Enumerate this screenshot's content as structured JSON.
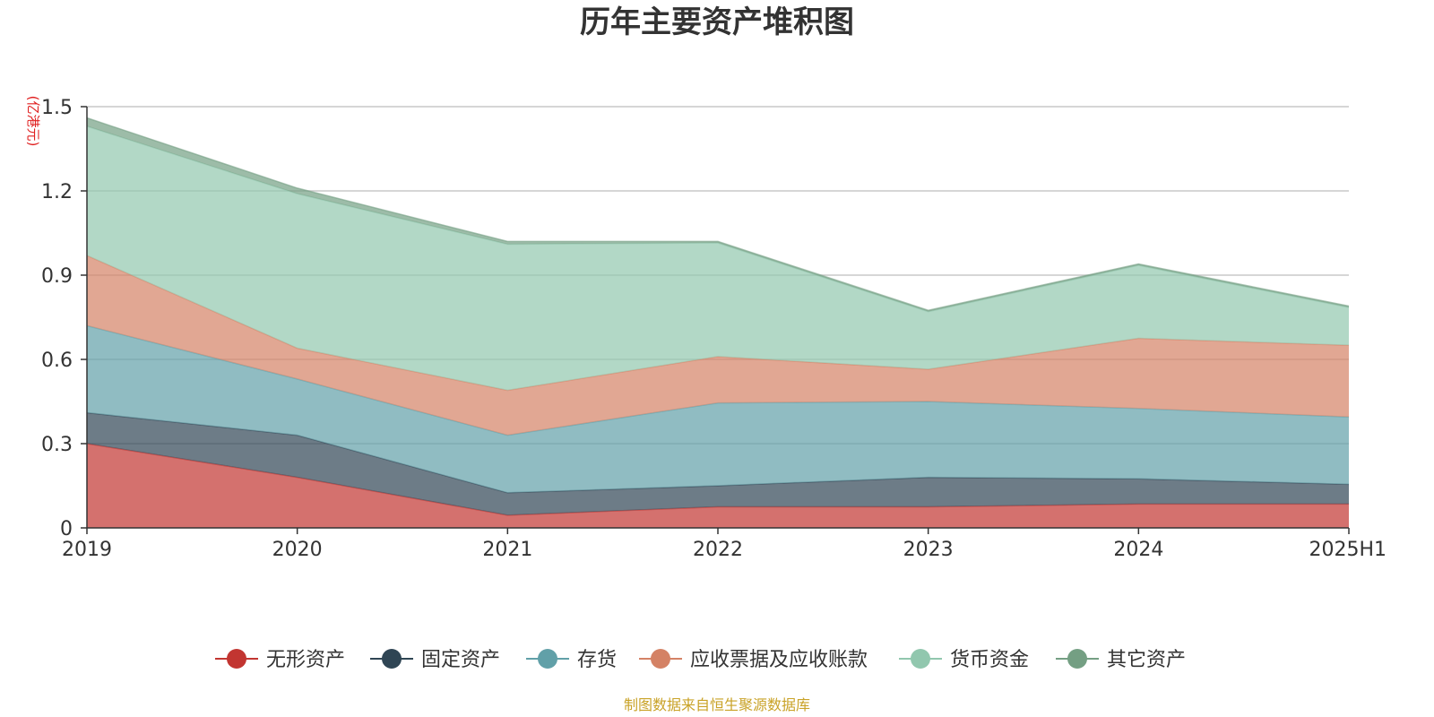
{
  "chart_data": {
    "type": "area",
    "stacked": true,
    "title": "历年主要资产堆积图",
    "unit_label": "(亿港元)",
    "categories": [
      "2019",
      "2020",
      "2021",
      "2022",
      "2023",
      "2024",
      "2025H1"
    ],
    "ylim": [
      0,
      1.5
    ],
    "yticks": [
      "0",
      "0.3",
      "0.6",
      "0.9",
      "1.2",
      "1.5"
    ],
    "ytick_values": [
      0,
      0.3,
      0.6,
      0.9,
      1.2,
      1.5
    ],
    "grid": true,
    "legend_position": "bottom",
    "series": [
      {
        "name": "无形资产",
        "color": "#c23531",
        "values": [
          0.3,
          0.18,
          0.045,
          0.075,
          0.075,
          0.085,
          0.085
        ]
      },
      {
        "name": "固定资产",
        "color": "#2f4554",
        "values": [
          0.11,
          0.15,
          0.08,
          0.075,
          0.105,
          0.09,
          0.07
        ]
      },
      {
        "name": "存货",
        "color": "#61a0a8",
        "values": [
          0.31,
          0.2,
          0.205,
          0.295,
          0.27,
          0.25,
          0.24
        ]
      },
      {
        "name": "应收票据及应收账款",
        "color": "#d48265",
        "values": [
          0.25,
          0.11,
          0.16,
          0.165,
          0.115,
          0.25,
          0.255
        ]
      },
      {
        "name": "货币资金",
        "color": "#91c7ae",
        "values": [
          0.46,
          0.55,
          0.52,
          0.405,
          0.205,
          0.26,
          0.135
        ]
      },
      {
        "name": "其它资产",
        "color": "#749f83",
        "values": [
          0.03,
          0.02,
          0.01,
          0.005,
          0.005,
          0.005,
          0.005
        ]
      }
    ]
  },
  "footer": {
    "source": "制图数据来自恒生聚源数据库"
  }
}
